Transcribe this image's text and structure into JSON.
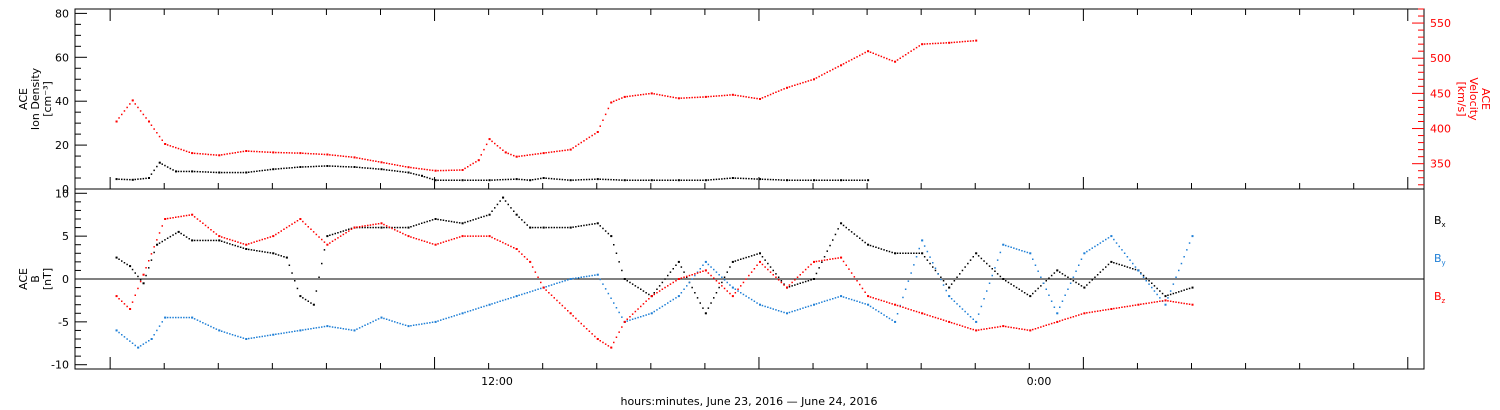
{
  "chart_data": [
    {
      "type": "scatter",
      "ylabel_left": [
        "ACE",
        "Ion Density",
        "[cm⁻³]"
      ],
      "ylabel_right": [
        "ACE",
        "Velocity",
        "[km/s]"
      ],
      "y_left_ticks": [
        "0",
        "20",
        "40",
        "60",
        "80"
      ],
      "y_right_ticks": [
        "350",
        "400",
        "450",
        "500",
        "550"
      ],
      "ylim_left": [
        0,
        82
      ],
      "ylim_right": [
        314,
        570
      ],
      "series": [
        {
          "name": "Ion Density",
          "color": "#000000",
          "axis": "left",
          "points": [
            [
              -11.8,
              4.5
            ],
            [
              -11.2,
              4.2
            ],
            [
              -10.6,
              5
            ],
            [
              -10.2,
              12
            ],
            [
              -9.6,
              8
            ],
            [
              -9,
              8
            ],
            [
              -8,
              7.5
            ],
            [
              -7,
              7.5
            ],
            [
              -6,
              9
            ],
            [
              -5,
              10
            ],
            [
              -4,
              10.5
            ],
            [
              -3,
              10
            ],
            [
              -2,
              9
            ],
            [
              -1,
              7.5
            ],
            [
              -0.5,
              6
            ],
            [
              0,
              4
            ],
            [
              1,
              4
            ],
            [
              2,
              4
            ],
            [
              3,
              4.5
            ],
            [
              3.5,
              4
            ],
            [
              4,
              5
            ],
            [
              5,
              4
            ],
            [
              6,
              4.5
            ],
            [
              7,
              4
            ],
            [
              8,
              4
            ],
            [
              9,
              4
            ],
            [
              10,
              4
            ],
            [
              11,
              5
            ],
            [
              12,
              4.5
            ],
            [
              13,
              4
            ],
            [
              14,
              4
            ],
            [
              15,
              4
            ],
            [
              16,
              4
            ]
          ]
        },
        {
          "name": "Velocity",
          "color": "#ff0000",
          "axis": "right",
          "points": [
            [
              -11.8,
              410
            ],
            [
              -11.2,
              440
            ],
            [
              -10.6,
              410
            ],
            [
              -10,
              378
            ],
            [
              -9,
              365
            ],
            [
              -8,
              362
            ],
            [
              -7,
              368
            ],
            [
              -6,
              366
            ],
            [
              -5,
              365
            ],
            [
              -4,
              363
            ],
            [
              -3,
              359
            ],
            [
              -2,
              352
            ],
            [
              -1,
              345
            ],
            [
              0,
              340
            ],
            [
              1,
              341
            ],
            [
              1.6,
              355
            ],
            [
              2,
              385
            ],
            [
              2.6,
              366
            ],
            [
              3,
              360
            ],
            [
              4,
              365
            ],
            [
              5,
              370
            ],
            [
              6,
              395
            ],
            [
              6.5,
              437
            ],
            [
              7,
              445
            ],
            [
              8,
              450
            ],
            [
              9,
              443
            ],
            [
              10,
              445
            ],
            [
              11,
              448
            ],
            [
              12,
              442
            ],
            [
              13,
              458
            ],
            [
              14,
              470
            ],
            [
              15,
              490
            ],
            [
              16,
              510
            ],
            [
              17,
              495
            ],
            [
              18,
              520
            ],
            [
              19,
              522
            ],
            [
              20,
              525
            ]
          ]
        }
      ]
    },
    {
      "type": "scatter",
      "ylabel": [
        "ACE",
        "B",
        "[nT]"
      ],
      "y_ticks": [
        "-10",
        "-5",
        "0",
        "5",
        "10"
      ],
      "ylim": [
        -10.5,
        10.5
      ],
      "x_tick_labels": [
        "12:00",
        "0:00"
      ],
      "xlabel": "hours:minutes, June 23, 2016 — June 24, 2016",
      "legend": [
        "B",
        "B",
        "B"
      ],
      "legend_subscripts": [
        "x",
        "y",
        "z"
      ],
      "series": [
        {
          "name": "Bx",
          "color": "#000000",
          "points": [
            [
              -11.8,
              2.5
            ],
            [
              -11.3,
              1.5
            ],
            [
              -10.8,
              -0.5
            ],
            [
              -10.3,
              4
            ],
            [
              -9.5,
              5.5
            ],
            [
              -9,
              4.5
            ],
            [
              -8,
              4.5
            ],
            [
              -7,
              3.5
            ],
            [
              -6,
              3
            ],
            [
              -5.5,
              2.5
            ],
            [
              -5,
              -2
            ],
            [
              -4.5,
              -3
            ],
            [
              -4,
              5
            ],
            [
              -3,
              6
            ],
            [
              -2,
              6
            ],
            [
              -1,
              6
            ],
            [
              0,
              7
            ],
            [
              1,
              6.5
            ],
            [
              2,
              7.5
            ],
            [
              2.5,
              9.5
            ],
            [
              3,
              7.5
            ],
            [
              3.5,
              6
            ],
            [
              4,
              6
            ],
            [
              5,
              6
            ],
            [
              6,
              6.5
            ],
            [
              6.5,
              5
            ],
            [
              7,
              0
            ],
            [
              8,
              -2
            ],
            [
              9,
              2
            ],
            [
              10,
              -4
            ],
            [
              11,
              2
            ],
            [
              12,
              3
            ],
            [
              13,
              -1
            ],
            [
              14,
              0
            ],
            [
              15,
              6.5
            ],
            [
              16,
              4
            ],
            [
              17,
              3
            ],
            [
              18,
              3
            ],
            [
              19,
              -1
            ],
            [
              20,
              3
            ],
            [
              21,
              0
            ],
            [
              22,
              -2
            ],
            [
              23,
              1
            ],
            [
              24,
              -1
            ],
            [
              25,
              2
            ],
            [
              26,
              1
            ],
            [
              27,
              -2
            ],
            [
              28,
              -1
            ]
          ]
        },
        {
          "name": "By",
          "color": "#1f7fd6",
          "points": [
            [
              -11.8,
              -6
            ],
            [
              -11,
              -8
            ],
            [
              -10.5,
              -7
            ],
            [
              -10,
              -4.5
            ],
            [
              -9,
              -4.5
            ],
            [
              -8,
              -6
            ],
            [
              -7,
              -7
            ],
            [
              -6,
              -6.5
            ],
            [
              -5,
              -6
            ],
            [
              -4,
              -5.5
            ],
            [
              -3,
              -6
            ],
            [
              -2,
              -4.5
            ],
            [
              -1,
              -5.5
            ],
            [
              0,
              -5
            ],
            [
              1,
              -4
            ],
            [
              2,
              -3
            ],
            [
              3,
              -2
            ],
            [
              4,
              -1
            ],
            [
              5,
              0
            ],
            [
              6,
              0.5
            ],
            [
              7,
              -5
            ],
            [
              8,
              -4
            ],
            [
              9,
              -2
            ],
            [
              10,
              2
            ],
            [
              11,
              -1
            ],
            [
              12,
              -3
            ],
            [
              13,
              -4
            ],
            [
              14,
              -3
            ],
            [
              15,
              -2
            ],
            [
              16,
              -3
            ],
            [
              17,
              -5
            ],
            [
              18,
              4.5
            ],
            [
              19,
              -2
            ],
            [
              20,
              -5
            ],
            [
              21,
              4
            ],
            [
              22,
              3
            ],
            [
              23,
              -4
            ],
            [
              24,
              3
            ],
            [
              25,
              5
            ],
            [
              26,
              1
            ],
            [
              27,
              -3
            ],
            [
              28,
              5
            ]
          ]
        },
        {
          "name": "Bz",
          "color": "#ff0000",
          "points": [
            [
              -11.8,
              -2
            ],
            [
              -11.3,
              -3.5
            ],
            [
              -10.8,
              0.5
            ],
            [
              -10,
              7
            ],
            [
              -9,
              7.5
            ],
            [
              -8,
              5
            ],
            [
              -7,
              4
            ],
            [
              -6,
              5
            ],
            [
              -5,
              7
            ],
            [
              -4,
              4
            ],
            [
              -3,
              6
            ],
            [
              -2,
              6.5
            ],
            [
              -1,
              5
            ],
            [
              0,
              4
            ],
            [
              1,
              5
            ],
            [
              2,
              5
            ],
            [
              3,
              3.5
            ],
            [
              3.5,
              2
            ],
            [
              4,
              -1
            ],
            [
              5,
              -4
            ],
            [
              6,
              -7
            ],
            [
              6.5,
              -8
            ],
            [
              7,
              -5
            ],
            [
              8,
              -2
            ],
            [
              9,
              0
            ],
            [
              10,
              1
            ],
            [
              11,
              -2
            ],
            [
              12,
              2
            ],
            [
              13,
              -1
            ],
            [
              14,
              2
            ],
            [
              15,
              2.5
            ],
            [
              16,
              -2
            ],
            [
              17,
              -3
            ],
            [
              18,
              -4
            ],
            [
              19,
              -5
            ],
            [
              20,
              -6
            ],
            [
              21,
              -5.5
            ],
            [
              22,
              -6
            ],
            [
              23,
              -5
            ],
            [
              24,
              -4
            ],
            [
              25,
              -3.5
            ],
            [
              26,
              -3
            ],
            [
              27,
              -2.5
            ],
            [
              28,
              -3
            ]
          ]
        }
      ]
    }
  ]
}
